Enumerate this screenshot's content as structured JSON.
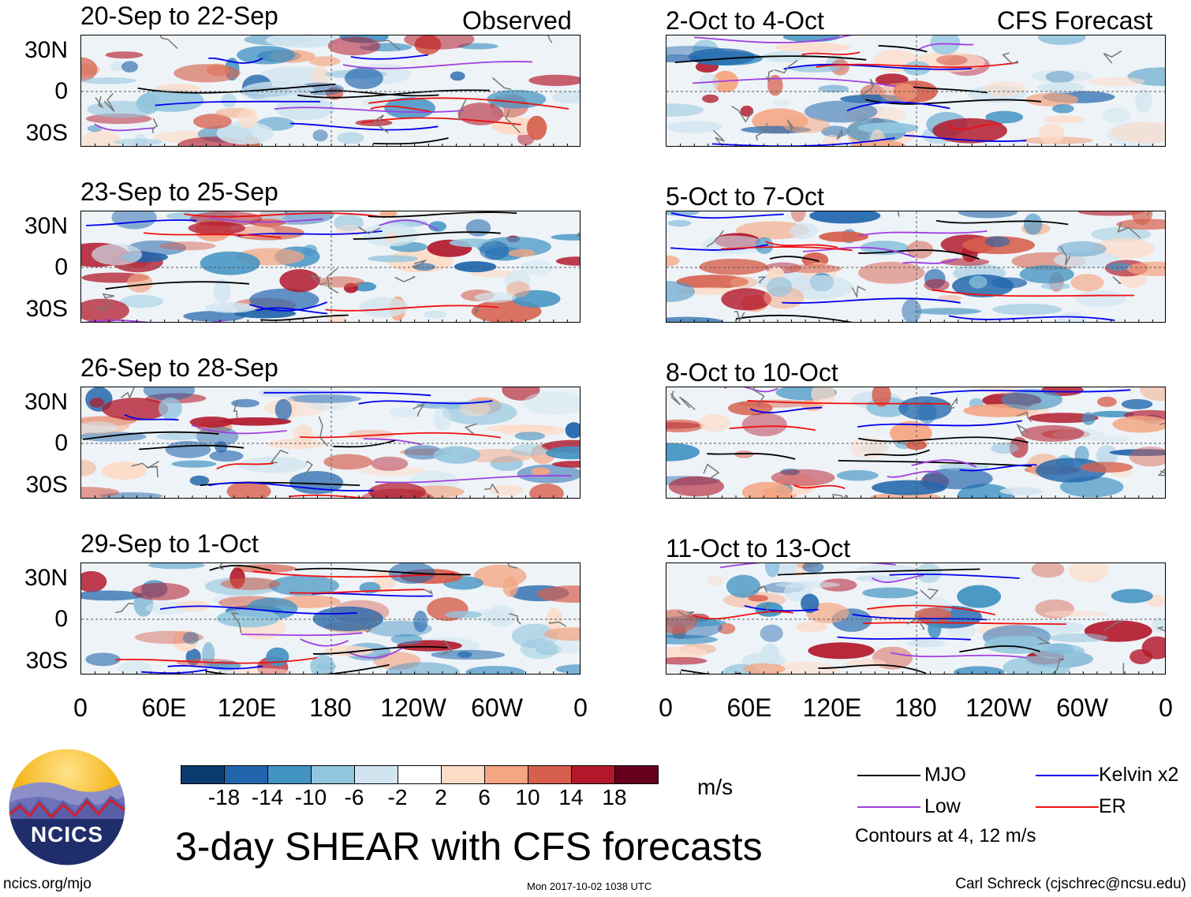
{
  "chart_data": {
    "type": "heatmap",
    "title": "3-day SHEAR with CFS forecasts",
    "units": "m/s",
    "columns": {
      "observed_label": "Observed",
      "forecast_label": "CFS Forecast"
    },
    "observed_panels": [
      "20-Sep to 22-Sep",
      "23-Sep to 25-Sep",
      "26-Sep to 28-Sep",
      "29-Sep to 1-Oct"
    ],
    "forecast_panels": [
      "2-Oct to 4-Oct",
      "5-Oct to 7-Oct",
      "8-Oct to 10-Oct",
      "11-Oct to 13-Oct"
    ],
    "y_ticks": [
      "30N",
      "0",
      "30S"
    ],
    "x_ticks": [
      "0",
      "60E",
      "120E",
      "180",
      "120W",
      "60W",
      "0"
    ],
    "colorbar_ticks": [
      "-18",
      "-14",
      "-10",
      "-6",
      "-2",
      "2",
      "6",
      "10",
      "14",
      "18"
    ],
    "colorbar_colors": [
      "#0b3a6e",
      "#2166ac",
      "#4393c3",
      "#92c5de",
      "#d1e5f0",
      "#ffffff",
      "#fddbc7",
      "#f4a582",
      "#d6604d",
      "#b2182b",
      "#67001f"
    ],
    "contour_levels_label": "Contours at 4, 12 m/s",
    "legend": [
      {
        "label": "MJO",
        "color": "#000000"
      },
      {
        "label": "Kelvin x2",
        "color": "#0000ee"
      },
      {
        "label": "Low",
        "color": "#a040e0"
      },
      {
        "label": "ER",
        "color": "#ee1111"
      }
    ]
  },
  "footer": {
    "logo_text": "NCICS",
    "site": "ncics.org/mjo",
    "timestamp": "Mon 2017-10-02 1038 UTC",
    "author": "Carl Schreck (cjschrec@ncsu.edu)"
  }
}
